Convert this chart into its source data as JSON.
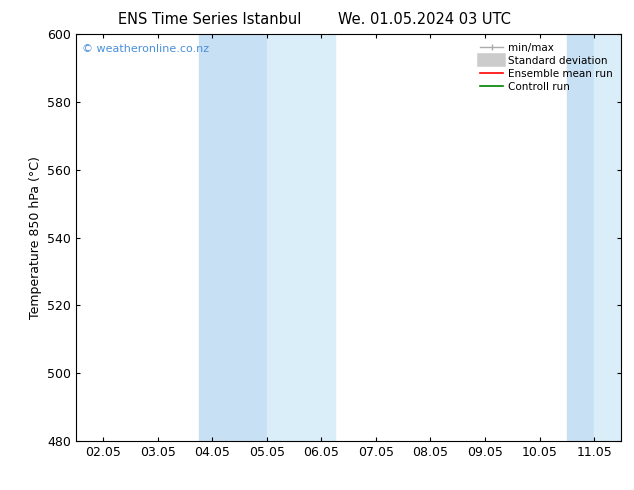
{
  "title_left": "ENS Time Series Istanbul",
  "title_right": "We. 01.05.2024 03 UTC",
  "ylabel": "Temperature 850 hPa (°C)",
  "ylim": [
    480,
    600
  ],
  "yticks": [
    480,
    500,
    520,
    540,
    560,
    580,
    600
  ],
  "xtick_labels": [
    "02.05",
    "03.05",
    "04.05",
    "05.05",
    "06.05",
    "07.05",
    "08.05",
    "09.05",
    "10.05",
    "11.05"
  ],
  "xtick_positions": [
    1,
    2,
    3,
    4,
    5,
    6,
    7,
    8,
    9,
    10
  ],
  "xlim": [
    0.5,
    10.5
  ],
  "band1_x0": 2.75,
  "band1_mid": 4.0,
  "band1_x1": 5.25,
  "band2_x0": 9.5,
  "band2_mid": 10.0,
  "band2_x1": 10.5,
  "band_color_dark": "#c8e0f4",
  "band_color_light": "#daeefa",
  "watermark_text": "© weatheronline.co.nz",
  "watermark_color": "#4a90d9",
  "bg_color": "#ffffff",
  "spine_color": "#000000",
  "font_size": 9,
  "title_font_size": 10.5
}
